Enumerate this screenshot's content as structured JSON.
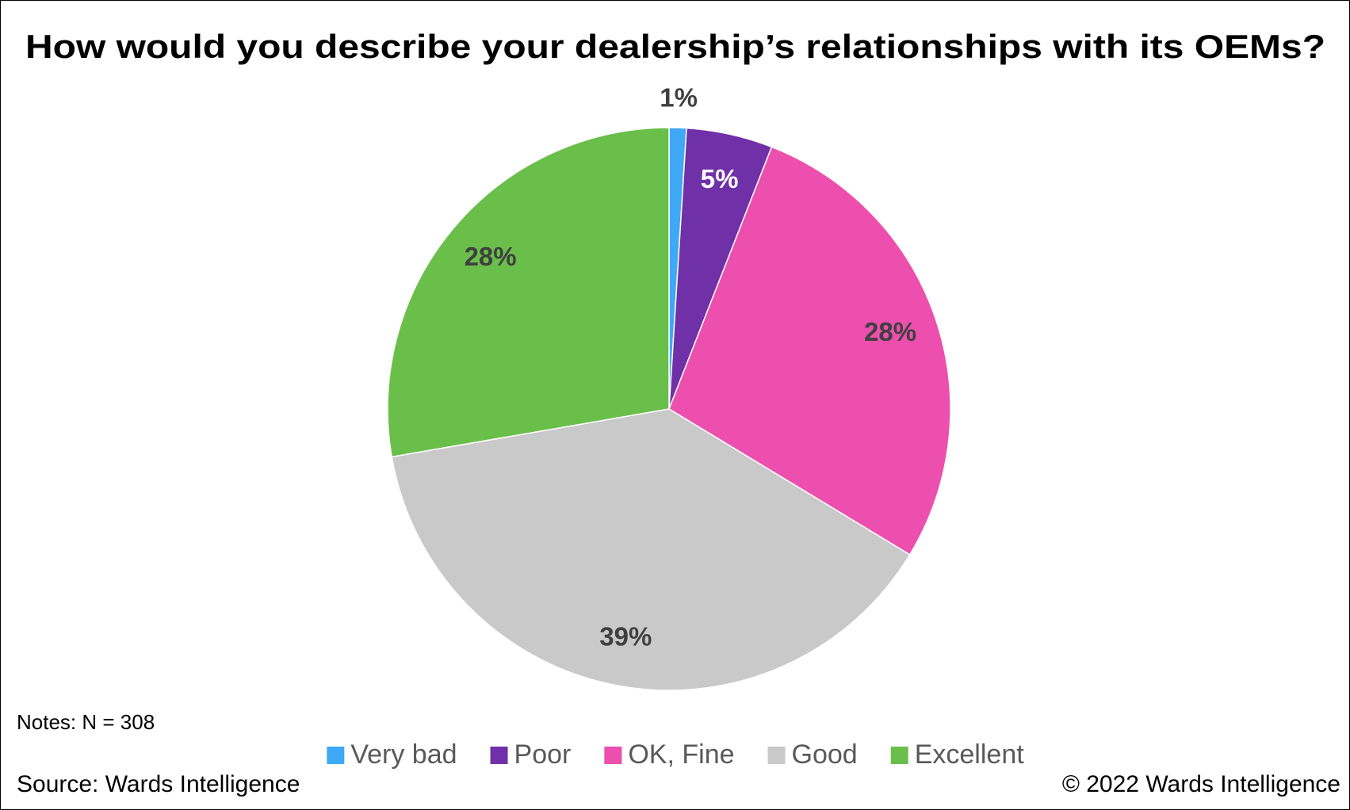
{
  "chart_data": {
    "type": "pie",
    "title": "How would you describe your dealership’s relationships with its OEMs?",
    "categories": [
      "Very bad",
      "Poor",
      "OK, Fine",
      "Good",
      "Excellent"
    ],
    "values": [
      1,
      5,
      28,
      39,
      28
    ],
    "value_labels": [
      "1%",
      "5%",
      "28%",
      "39%",
      "28%"
    ],
    "colors": [
      "#3fa9f5",
      "#7030a8",
      "#ec4fae",
      "#c9c9c9",
      "#6abf4b"
    ],
    "notes": "Notes: N = 308",
    "source": "Source: Wards Intelligence",
    "copyright": "© 2022 Wards Intelligence"
  }
}
